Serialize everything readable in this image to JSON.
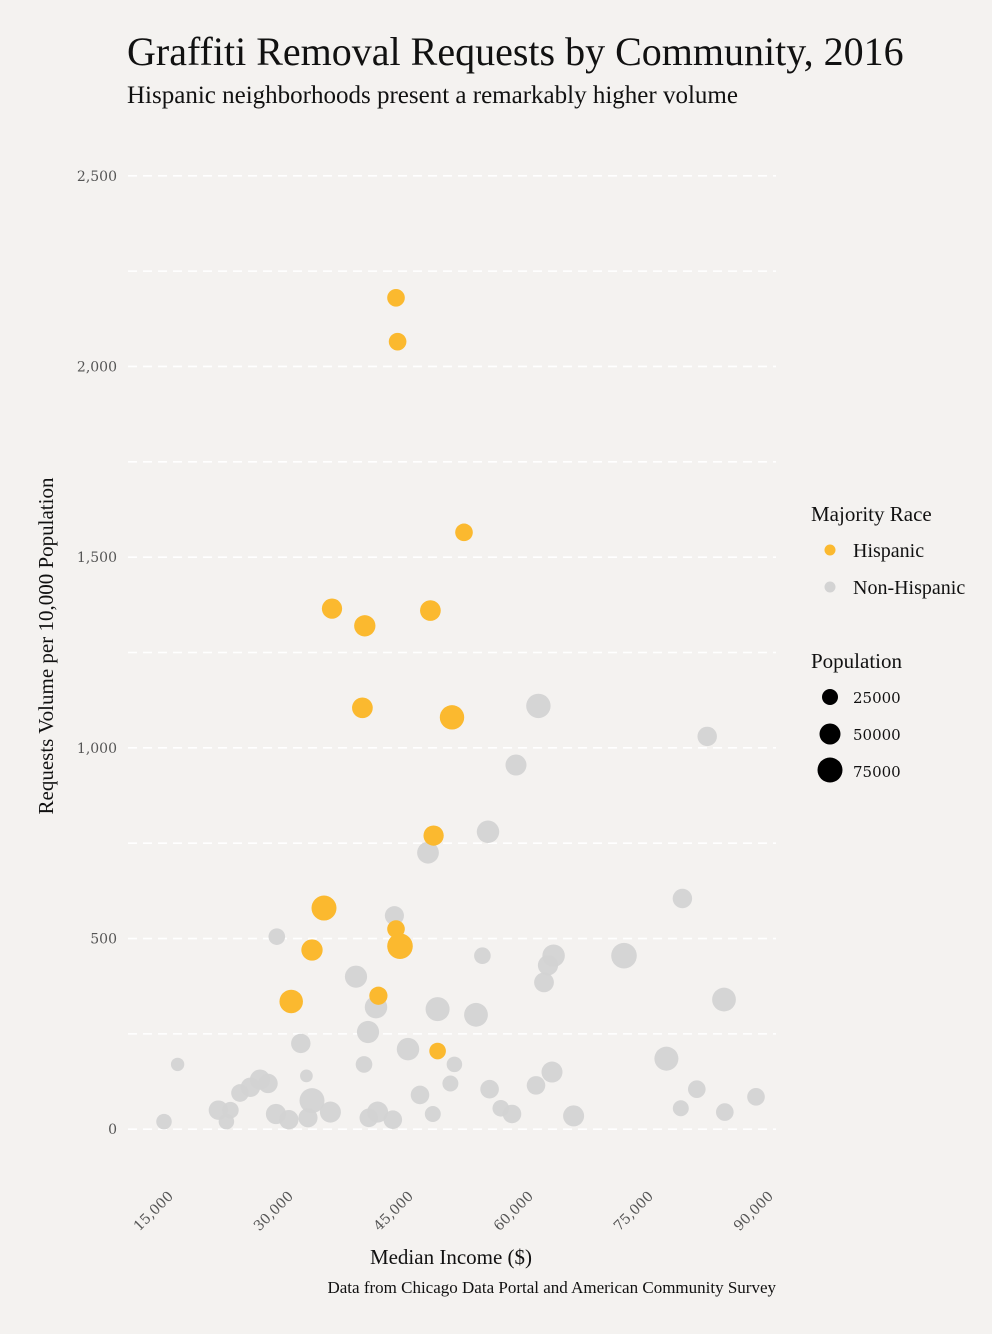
{
  "chart_data": {
    "type": "scatter",
    "title": "Graffiti Removal Requests by Community, 2016",
    "subtitle": "Hispanic neighborhoods present a remarkably higher volume",
    "xlabel": "Median Income ($)",
    "ylabel": "Requests Volume per 10,000 Population",
    "caption": "Data from Chicago Data Portal and American Community Survey",
    "xlim": [
      9000,
      90000
    ],
    "ylim": [
      -120,
      2620
    ],
    "x_ticks": [
      15000,
      30000,
      45000,
      60000,
      75000,
      90000
    ],
    "x_tick_labels": [
      "15,000",
      "30,000",
      "45,000",
      "60,000",
      "75,000",
      "90,000"
    ],
    "y_ticks": [
      0,
      500,
      1000,
      1500,
      2000,
      2500
    ],
    "y_tick_labels": [
      "0",
      "500",
      "1,000",
      "1,500",
      "2,000",
      "2,500"
    ],
    "y_minor_gridlines": [
      250,
      750,
      1250,
      1750,
      2250
    ],
    "grid": true,
    "legend_placement": "right",
    "colors": {
      "Hispanic": "#fbb92f",
      "Non-Hispanic": "#d3d3d3",
      "background": "#f4f2f0",
      "size_legend": "#000000"
    },
    "legend": {
      "color_title": "Majority Race",
      "color_entries": [
        "Hispanic",
        "Non-Hispanic"
      ],
      "size_title": "Population",
      "size_entries": [
        25000,
        50000,
        75000
      ]
    },
    "series": [
      {
        "name": "Hispanic",
        "points": [
          [
            42500,
            2180,
            30000
          ],
          [
            42700,
            2065,
            30000
          ],
          [
            51000,
            1565,
            30000
          ],
          [
            34500,
            1365,
            45000
          ],
          [
            38600,
            1320,
            52000
          ],
          [
            46800,
            1360,
            48000
          ],
          [
            38300,
            1105,
            48000
          ],
          [
            49500,
            1080,
            75000
          ],
          [
            47200,
            770,
            45000
          ],
          [
            33500,
            580,
            80000
          ],
          [
            32000,
            470,
            52000
          ],
          [
            42500,
            525,
            30000
          ],
          [
            43000,
            480,
            85000
          ],
          [
            29400,
            335,
            68000
          ],
          [
            40300,
            350,
            33000
          ],
          [
            47700,
            205,
            25000
          ]
        ]
      },
      {
        "name": "Non-Hispanic",
        "points": [
          [
            60300,
            1110,
            75000
          ],
          [
            81400,
            1030,
            40000
          ],
          [
            57500,
            955,
            50000
          ],
          [
            54000,
            780,
            60000
          ],
          [
            46500,
            725,
            55000
          ],
          [
            78300,
            605,
            40000
          ],
          [
            42300,
            560,
            38000
          ],
          [
            27600,
            505,
            25000
          ],
          [
            53300,
            455,
            25000
          ],
          [
            62200,
            455,
            60000
          ],
          [
            71000,
            455,
            85000
          ],
          [
            61500,
            430,
            45000
          ],
          [
            37500,
            400,
            58000
          ],
          [
            61000,
            385,
            42000
          ],
          [
            83500,
            340,
            70000
          ],
          [
            47700,
            315,
            72000
          ],
          [
            40000,
            320,
            60000
          ],
          [
            52500,
            300,
            70000
          ],
          [
            39000,
            255,
            58000
          ],
          [
            30600,
            225,
            40000
          ],
          [
            44000,
            210,
            60000
          ],
          [
            38500,
            170,
            25000
          ],
          [
            15200,
            170,
            12000
          ],
          [
            31300,
            140,
            10000
          ],
          [
            49800,
            170,
            20000
          ],
          [
            62000,
            150,
            50000
          ],
          [
            76300,
            185,
            72000
          ],
          [
            25500,
            130,
            45000
          ],
          [
            26500,
            120,
            40000
          ],
          [
            24300,
            110,
            40000
          ],
          [
            23000,
            95,
            30000
          ],
          [
            49300,
            120,
            22000
          ],
          [
            54200,
            105,
            35000
          ],
          [
            60000,
            115,
            35000
          ],
          [
            80100,
            105,
            30000
          ],
          [
            45500,
            90,
            35000
          ],
          [
            87500,
            85,
            30000
          ],
          [
            32000,
            75,
            80000
          ],
          [
            20300,
            50,
            40000
          ],
          [
            21800,
            50,
            25000
          ],
          [
            27500,
            40,
            45000
          ],
          [
            29100,
            25,
            40000
          ],
          [
            31500,
            30,
            38000
          ],
          [
            34300,
            45,
            50000
          ],
          [
            40200,
            45,
            50000
          ],
          [
            39100,
            30,
            35000
          ],
          [
            42100,
            25,
            35000
          ],
          [
            47100,
            40,
            22000
          ],
          [
            55600,
            55,
            25000
          ],
          [
            57000,
            40,
            35000
          ],
          [
            64700,
            35,
            50000
          ],
          [
            78100,
            55,
            22000
          ],
          [
            83600,
            45,
            30000
          ],
          [
            21300,
            20,
            20000
          ],
          [
            13500,
            20,
            20000
          ]
        ]
      }
    ]
  }
}
